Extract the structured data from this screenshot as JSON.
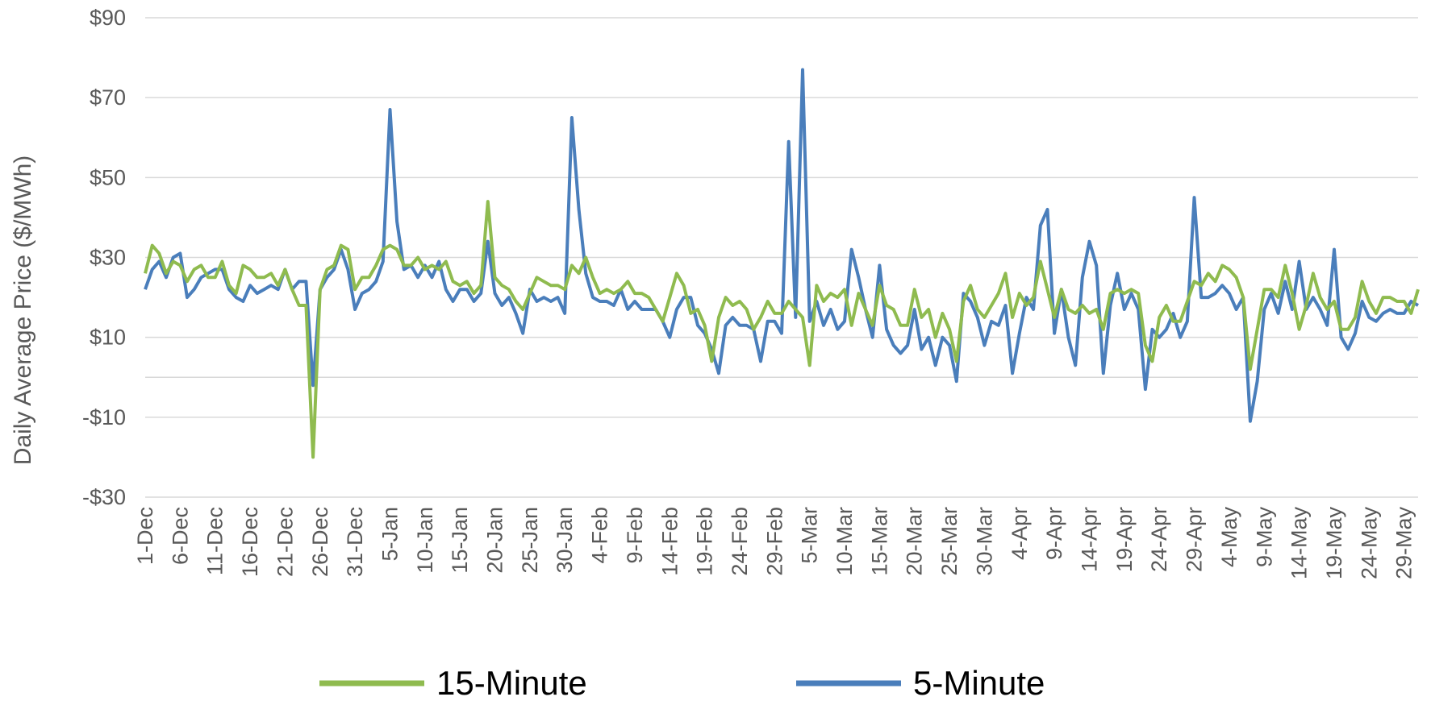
{
  "chart_data": {
    "type": "line",
    "y_label": "Daily Average Price ($/MWh)",
    "categories": [
      "1-Dec",
      null,
      null,
      null,
      null,
      "6-Dec",
      null,
      null,
      null,
      null,
      "11-Dec",
      null,
      null,
      null,
      null,
      "16-Dec",
      null,
      null,
      null,
      null,
      "21-Dec",
      null,
      null,
      null,
      null,
      "26-Dec",
      null,
      null,
      null,
      null,
      "31-Dec",
      null,
      null,
      null,
      null,
      "5-Jan",
      null,
      null,
      null,
      null,
      "10-Jan",
      null,
      null,
      null,
      null,
      "15-Jan",
      null,
      null,
      null,
      null,
      "20-Jan",
      null,
      null,
      null,
      null,
      "25-Jan",
      null,
      null,
      null,
      null,
      "30-Jan",
      null,
      null,
      null,
      null,
      "4-Feb",
      null,
      null,
      null,
      null,
      "9-Feb",
      null,
      null,
      null,
      null,
      "14-Feb",
      null,
      null,
      null,
      null,
      "19-Feb",
      null,
      null,
      null,
      null,
      "24-Feb",
      null,
      null,
      null,
      null,
      "29-Feb",
      null,
      null,
      null,
      null,
      "5-Mar",
      null,
      null,
      null,
      null,
      "10-Mar",
      null,
      null,
      null,
      null,
      "15-Mar",
      null,
      null,
      null,
      null,
      "20-Mar",
      null,
      null,
      null,
      null,
      "25-Mar",
      null,
      null,
      null,
      null,
      "30-Mar",
      null,
      null,
      null,
      null,
      "4-Apr",
      null,
      null,
      null,
      null,
      "9-Apr",
      null,
      null,
      null,
      null,
      "14-Apr",
      null,
      null,
      null,
      null,
      "19-Apr",
      null,
      null,
      null,
      null,
      "24-Apr",
      null,
      null,
      null,
      null,
      "29-Apr",
      null,
      null,
      null,
      null,
      "4-May",
      null,
      null,
      null,
      null,
      "9-May",
      null,
      null,
      null,
      null,
      "14-May",
      null,
      null,
      null,
      null,
      "19-May",
      null,
      null,
      null,
      null,
      "24-May",
      null,
      null,
      null,
      null,
      "29-May",
      null,
      null
    ],
    "series": [
      {
        "name": "15-Minute",
        "color": "#8fbb4f",
        "values": [
          26,
          33,
          31,
          26,
          29,
          28,
          24,
          27,
          28,
          25,
          25,
          29,
          23,
          21,
          28,
          27,
          25,
          25,
          26,
          23,
          27,
          22,
          18,
          18,
          -20,
          22,
          27,
          28,
          33,
          32,
          22,
          25,
          25,
          28,
          32,
          33,
          32,
          28,
          28,
          30,
          27,
          28,
          27,
          29,
          24,
          23,
          24,
          21,
          23,
          44,
          25,
          23,
          22,
          19,
          17,
          21,
          25,
          24,
          23,
          23,
          22,
          28,
          26,
          30,
          25,
          21,
          22,
          21,
          22,
          24,
          21,
          21,
          20,
          17,
          14,
          20,
          26,
          23,
          16,
          17,
          13,
          4,
          15,
          20,
          18,
          19,
          17,
          12,
          15,
          19,
          16,
          16,
          19,
          17,
          15,
          3,
          23,
          19,
          21,
          20,
          22,
          13,
          21,
          17,
          13,
          23,
          18,
          17,
          13,
          13,
          22,
          15,
          17,
          10,
          16,
          12,
          4,
          19,
          23,
          17,
          15,
          18,
          21,
          26,
          15,
          21,
          18,
          20,
          29,
          22,
          15,
          22,
          17,
          16,
          18,
          16,
          17,
          12,
          21,
          22,
          21,
          22,
          21,
          8,
          4,
          15,
          18,
          14,
          14,
          19,
          24,
          23,
          26,
          24,
          28,
          27,
          25,
          20,
          2,
          12,
          22,
          22,
          20,
          28,
          21,
          12,
          18,
          26,
          20,
          17,
          19,
          12,
          12,
          15,
          24,
          19,
          16,
          20,
          20,
          19,
          19,
          16,
          22
        ]
      },
      {
        "name": "5-Minute",
        "color": "#4a7ebb",
        "values": [
          22,
          27,
          29,
          25,
          30,
          31,
          20,
          22,
          25,
          26,
          27,
          27,
          22,
          20,
          19,
          23,
          21,
          22,
          23,
          22,
          27,
          22,
          24,
          24,
          -2,
          22,
          25,
          27,
          32,
          27,
          17,
          21,
          22,
          24,
          29,
          67,
          39,
          27,
          28,
          25,
          28,
          25,
          29,
          22,
          19,
          22,
          22,
          19,
          21,
          34,
          21,
          18,
          20,
          16,
          11,
          22,
          19,
          20,
          19,
          20,
          16,
          65,
          42,
          26,
          20,
          19,
          19,
          18,
          22,
          17,
          19,
          17,
          17,
          17,
          14,
          10,
          17,
          20,
          20,
          13,
          11,
          7,
          1,
          13,
          15,
          13,
          13,
          12,
          4,
          14,
          14,
          11,
          59,
          15,
          77,
          14,
          19,
          13,
          17,
          12,
          14,
          32,
          25,
          17,
          10,
          28,
          12,
          8,
          6,
          8,
          17,
          7,
          10,
          3,
          10,
          8,
          -1,
          21,
          19,
          15,
          8,
          14,
          13,
          18,
          1,
          11,
          20,
          17,
          38,
          42,
          11,
          22,
          10,
          3,
          25,
          34,
          28,
          1,
          18,
          26,
          17,
          21,
          17,
          -3,
          12,
          10,
          12,
          16,
          10,
          14,
          45,
          20,
          20,
          21,
          23,
          21,
          17,
          20,
          -11,
          -1,
          17,
          21,
          16,
          24,
          17,
          29,
          17,
          20,
          17,
          13,
          32,
          10,
          7,
          11,
          19,
          15,
          14,
          16,
          17,
          16,
          16,
          19,
          18
        ]
      }
    ],
    "ylim": [
      -30,
      90
    ],
    "yticks": [
      {
        "value": -30,
        "label": "-$30"
      },
      {
        "value": -10,
        "label": "-$10"
      },
      {
        "value": 10,
        "label": "$10"
      },
      {
        "value": 30,
        "label": "$30"
      },
      {
        "value": 50,
        "label": "$50"
      },
      {
        "value": 70,
        "label": "$70"
      },
      {
        "value": 90,
        "label": "$90"
      }
    ],
    "grid": true
  }
}
